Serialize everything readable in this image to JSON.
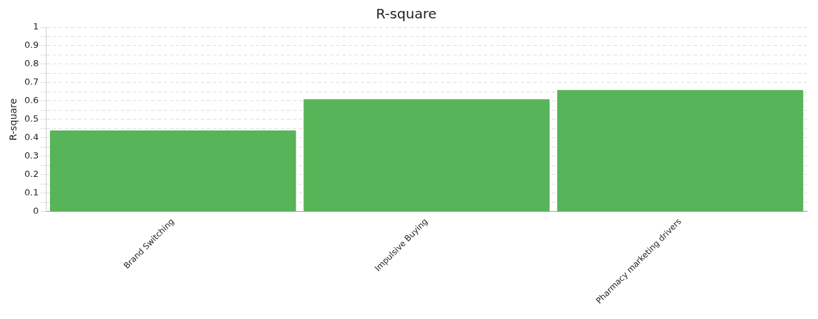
{
  "chart_data": {
    "type": "bar",
    "title": "R-square",
    "ylabel": "R-square",
    "categories": [
      "Brand Switching",
      "Impulsive Buying",
      "Pharmacy marketing drivers"
    ],
    "values": [
      0.44,
      0.61,
      0.66
    ],
    "color": "#57b458",
    "ylim": [
      0,
      1
    ],
    "yticks": [
      0,
      {
        "value": 0.05,
        "label": null
      },
      0.1,
      {
        "value": 0.15,
        "label": null
      },
      0.2,
      {
        "value": 0.25,
        "label": null
      },
      0.3,
      {
        "value": 0.35,
        "label": null
      },
      0.4,
      {
        "value": 0.45,
        "label": null
      },
      0.5,
      {
        "value": 0.55,
        "label": null
      },
      0.6,
      {
        "value": 0.65,
        "label": null
      },
      0.7,
      {
        "value": 0.75,
        "label": null
      },
      0.8,
      {
        "value": 0.85,
        "label": null
      },
      0.9,
      {
        "value": 0.95,
        "label": null
      },
      1
    ],
    "grid": "y",
    "legend": false
  }
}
